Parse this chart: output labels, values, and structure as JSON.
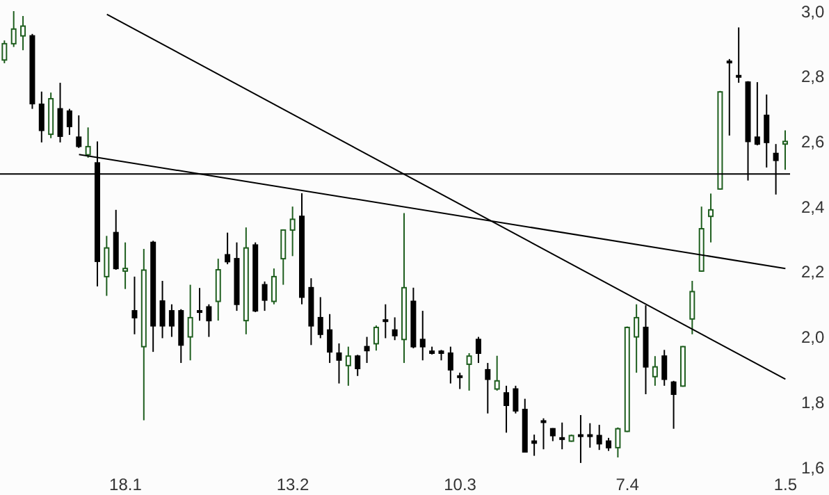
{
  "chart_data": {
    "type": "candlestick",
    "categories": [
      null,
      null,
      null,
      null,
      null,
      null,
      null,
      null,
      null,
      null,
      null,
      null,
      null,
      "18.1",
      null,
      null,
      null,
      null,
      null,
      null,
      null,
      null,
      null,
      null,
      null,
      null,
      null,
      null,
      null,
      null,
      null,
      "13.2",
      null,
      null,
      null,
      null,
      null,
      null,
      null,
      null,
      null,
      null,
      null,
      null,
      null,
      null,
      null,
      null,
      null,
      "10.3",
      null,
      null,
      null,
      null,
      null,
      null,
      null,
      null,
      null,
      null,
      null,
      null,
      null,
      null,
      null,
      null,
      null,
      "7.4",
      null,
      null,
      null,
      null,
      null,
      null,
      null,
      null,
      null,
      null,
      null,
      null,
      null,
      null,
      null,
      null,
      "1.5"
    ],
    "ohlc": [
      [
        2.85,
        2.91,
        2.84,
        2.9
      ],
      [
        2.9,
        3.0,
        2.89,
        2.945
      ],
      [
        2.924,
        2.985,
        2.88,
        2.954
      ],
      [
        2.924,
        2.93,
        2.7,
        2.716
      ],
      [
        2.714,
        2.753,
        2.597,
        2.634
      ],
      [
        2.622,
        2.75,
        2.61,
        2.731
      ],
      [
        2.7,
        2.78,
        2.597,
        2.616
      ],
      [
        2.693,
        2.7,
        2.62,
        2.646
      ],
      [
        2.613,
        2.68,
        2.58,
        2.585
      ],
      [
        2.559,
        2.643,
        2.55,
        2.584
      ],
      [
        2.534,
        2.6,
        2.155,
        2.232
      ],
      [
        2.185,
        2.31,
        2.126,
        2.273
      ],
      [
        2.32,
        2.39,
        2.206,
        2.21
      ],
      [
        2.202,
        2.29,
        2.147,
        2.21
      ],
      [
        2.08,
        2.185,
        2.008,
        2.059
      ],
      [
        1.97,
        2.27,
        1.744,
        2.205
      ],
      [
        2.29,
        2.295,
        1.954,
        2.034
      ],
      [
        2.11,
        2.172,
        1.996,
        2.034
      ],
      [
        2.08,
        2.1,
        2.0,
        2.034
      ],
      [
        2.08,
        2.085,
        1.92,
        1.975
      ],
      [
        2.0,
        2.16,
        1.928,
        2.059
      ],
      [
        2.08,
        2.15,
        2.05,
        2.076
      ],
      [
        2.092,
        2.1,
        2.0,
        2.05
      ],
      [
        2.109,
        2.24,
        2.05,
        2.206
      ],
      [
        2.252,
        2.32,
        2.223,
        2.231
      ],
      [
        2.24,
        2.29,
        2.08,
        2.1
      ],
      [
        2.05,
        2.336,
        2.008,
        2.273
      ],
      [
        2.282,
        2.29,
        2.076,
        2.08
      ],
      [
        2.16,
        2.17,
        2.08,
        2.113
      ],
      [
        2.109,
        2.21,
        2.1,
        2.185
      ],
      [
        2.24,
        2.33,
        2.16,
        2.328
      ],
      [
        2.328,
        2.4,
        2.248,
        2.361
      ],
      [
        2.37,
        2.441,
        2.1,
        2.122
      ],
      [
        2.151,
        2.18,
        1.975,
        2.034
      ],
      [
        2.059,
        2.122,
        1.996,
        2.008
      ],
      [
        2.021,
        2.07,
        1.92,
        1.954
      ],
      [
        1.95,
        1.98,
        1.857,
        1.929
      ],
      [
        1.912,
        1.97,
        1.85,
        1.941
      ],
      [
        1.941,
        1.945,
        1.88,
        1.903
      ],
      [
        1.97,
        2.0,
        1.92,
        1.958
      ],
      [
        1.979,
        2.035,
        1.958,
        2.029
      ],
      [
        2.052,
        2.1,
        1.996,
        2.048
      ],
      [
        2.021,
        2.06,
        1.99,
        2.004
      ],
      [
        1.992,
        2.38,
        1.92,
        2.151
      ],
      [
        2.109,
        2.151,
        1.965,
        1.97
      ],
      [
        1.992,
        2.08,
        1.928,
        1.97
      ],
      [
        1.956,
        1.97,
        1.946,
        1.95
      ],
      [
        1.956,
        1.96,
        1.928,
        1.95
      ],
      [
        1.95,
        1.97,
        1.857,
        1.899
      ],
      [
        1.88,
        1.89,
        1.84,
        1.878
      ],
      [
        1.916,
        1.95,
        1.835,
        1.941
      ],
      [
        1.992,
        2.0,
        1.92,
        1.95
      ],
      [
        1.899,
        1.92,
        1.765,
        1.87
      ],
      [
        1.84,
        1.942,
        1.835,
        1.865
      ],
      [
        1.828,
        1.85,
        1.706,
        1.79
      ],
      [
        1.84,
        1.85,
        1.765,
        1.773
      ],
      [
        1.777,
        1.81,
        1.645,
        1.647
      ],
      [
        1.68,
        1.7,
        1.635,
        1.674
      ],
      [
        1.742,
        1.75,
        1.655,
        1.74
      ],
      [
        1.718,
        1.72,
        1.68,
        1.697
      ],
      [
        1.69,
        1.737,
        1.655,
        1.688
      ],
      [
        1.68,
        1.7,
        1.678,
        1.697
      ],
      [
        1.699,
        1.76,
        1.613,
        1.695
      ],
      [
        1.699,
        1.735,
        1.66,
        1.695
      ],
      [
        1.697,
        1.73,
        1.653,
        1.672
      ],
      [
        1.68,
        1.69,
        1.65,
        1.66
      ],
      [
        1.66,
        1.722,
        1.63,
        1.718
      ],
      [
        1.71,
        2.032,
        1.708,
        2.029
      ],
      [
        2.0,
        2.1,
        1.89,
        2.059
      ],
      [
        2.029,
        2.097,
        1.824,
        1.908
      ],
      [
        1.878,
        1.941,
        1.85,
        1.908
      ],
      [
        1.941,
        1.96,
        1.85,
        1.87
      ],
      [
        1.861,
        1.865,
        1.718,
        1.824
      ],
      [
        1.849,
        1.972,
        1.847,
        1.97
      ],
      [
        2.055,
        2.172,
        2.008,
        2.139
      ],
      [
        2.202,
        2.4,
        2.2,
        2.332
      ],
      [
        2.37,
        2.44,
        2.29,
        2.39
      ],
      [
        2.454,
        2.755,
        2.452,
        2.752
      ],
      [
        2.846,
        2.853,
        2.618,
        2.844
      ],
      [
        2.802,
        2.95,
        2.78,
        2.798
      ],
      [
        2.782,
        2.785,
        2.48,
        2.6
      ],
      [
        2.613,
        2.782,
        2.588,
        2.592
      ],
      [
        2.68,
        2.744,
        2.52,
        2.597
      ],
      [
        2.563,
        2.592,
        2.437,
        2.542
      ],
      [
        2.592,
        2.634,
        2.513,
        2.6
      ]
    ],
    "colors": [
      "#1e5e1e",
      "#1e5e1e",
      "#1e5e1e",
      "#000000",
      "#000000",
      "#1e5e1e",
      "#000000",
      "#000000",
      "#000000",
      "#1e5e1e",
      "#000000",
      "#1e5e1e",
      "#000000",
      "#1e5e1e",
      "#000000",
      "#1e5e1e",
      "#000000",
      "#000000",
      "#000000",
      "#000000",
      "#1e5e1e",
      "#000000",
      "#000000",
      "#1e5e1e",
      "#000000",
      "#000000",
      "#1e5e1e",
      "#000000",
      "#000000",
      "#1e5e1e",
      "#1e5e1e",
      "#1e5e1e",
      "#000000",
      "#000000",
      "#000000",
      "#000000",
      "#000000",
      "#1e5e1e",
      "#000000",
      "#000000",
      "#1e5e1e",
      "#000000",
      "#000000",
      "#1e5e1e",
      "#000000",
      "#000000",
      "#000000",
      "#000000",
      "#000000",
      "#000000",
      "#1e5e1e",
      "#000000",
      "#000000",
      "#1e5e1e",
      "#000000",
      "#000000",
      "#000000",
      "#000000",
      "#000000",
      "#000000",
      "#000000",
      "#1e5e1e",
      "#000000",
      "#000000",
      "#000000",
      "#000000",
      "#1e5e1e",
      "#1e5e1e",
      "#1e5e1e",
      "#000000",
      "#1e5e1e",
      "#000000",
      "#000000",
      "#1e5e1e",
      "#1e5e1e",
      "#1e5e1e",
      "#1e5e1e",
      "#1e5e1e",
      "#000000",
      "#000000",
      "#000000",
      "#000000",
      "#000000",
      "#000000",
      "#1e5e1e"
    ],
    "series": [
      {
        "type": "line",
        "color": "#000000",
        "values": [
          null,
          null,
          null,
          null,
          null,
          null,
          null,
          null,
          null,
          null,
          null,
          2.99,
          null,
          null,
          null,
          null,
          null,
          null,
          null,
          null,
          null,
          null,
          null,
          null,
          null,
          null,
          null,
          null,
          null,
          null,
          null,
          null,
          null,
          null,
          null,
          null,
          null,
          null,
          null,
          null,
          null,
          null,
          null,
          null,
          null,
          null,
          null,
          null,
          null,
          null,
          null,
          null,
          null,
          null,
          null,
          null,
          null,
          null,
          null,
          null,
          null,
          null,
          null,
          null,
          null,
          null,
          null,
          null,
          null,
          null,
          null,
          null,
          null,
          null,
          null,
          null,
          null,
          null,
          null,
          null,
          null,
          null,
          null,
          null,
          1.87
        ]
      },
      {
        "type": "line",
        "color": "#000000",
        "values": [
          null,
          null,
          null,
          null,
          null,
          null,
          null,
          null,
          2.56,
          null,
          null,
          null,
          null,
          null,
          null,
          null,
          null,
          null,
          null,
          null,
          null,
          null,
          null,
          null,
          null,
          null,
          null,
          null,
          null,
          null,
          null,
          null,
          null,
          null,
          null,
          null,
          null,
          null,
          null,
          null,
          null,
          null,
          null,
          null,
          null,
          null,
          null,
          null,
          null,
          null,
          null,
          null,
          null,
          null,
          null,
          null,
          null,
          null,
          null,
          null,
          null,
          null,
          null,
          null,
          null,
          null,
          null,
          null,
          null,
          null,
          null,
          null,
          null,
          null,
          null,
          null,
          null,
          null,
          null,
          null,
          null,
          null,
          null,
          null,
          2.21
        ]
      }
    ],
    "ref_lines": [
      {
        "axis": "y",
        "value": 2.5,
        "color": "#000000"
      }
    ],
    "ylim": [
      1.6,
      3.0
    ],
    "yticks": [
      {
        "value": 1.6,
        "label": "1,6"
      },
      {
        "value": 1.8,
        "label": "1,8"
      },
      {
        "value": 2.0,
        "label": "2,0"
      },
      {
        "value": 2.2,
        "label": "2,2"
      },
      {
        "value": 2.4,
        "label": "2,4"
      },
      {
        "value": 2.6,
        "label": "2,6"
      },
      {
        "value": 2.8,
        "label": "2,8"
      },
      {
        "value": 3.0,
        "label": "3,0"
      }
    ]
  }
}
